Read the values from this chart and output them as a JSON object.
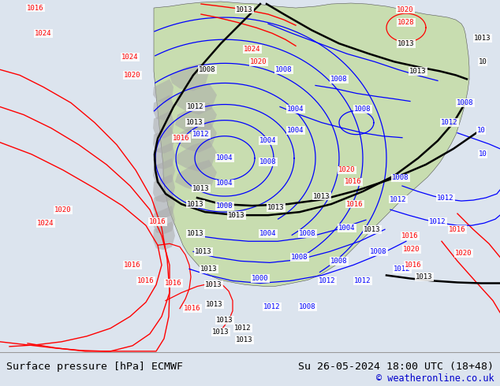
{
  "title_left": "Surface pressure [hPa] ECMWF",
  "title_right": "Su 26-05-2024 18:00 UTC (18+48)",
  "copyright": "© weatheronline.co.uk",
  "ocean_color": "#dce4ee",
  "land_color": "#c8ddb0",
  "mountain_color": "#aaaaaa",
  "bottom_bar_color": "#e0e0e0",
  "font_family": "DejaVu Sans Mono",
  "title_fontsize": 9.5,
  "copyright_fontsize": 8.5,
  "fig_width": 6.34,
  "fig_height": 4.9,
  "dpi": 100
}
